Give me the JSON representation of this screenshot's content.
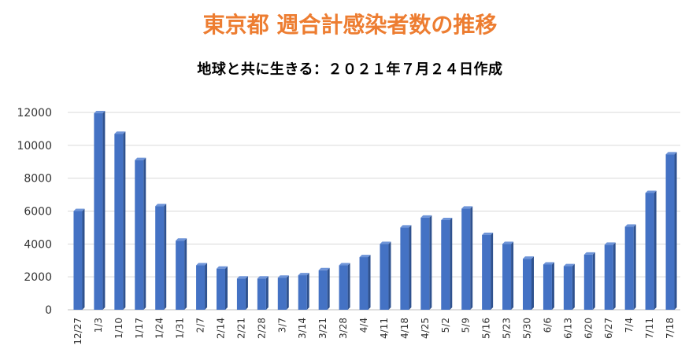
{
  "chart_data": {
    "type": "bar",
    "title": "東京都 週合計感染者数の推移",
    "subtitle": "地球と共に生きる：２０２１年７月２４日作成",
    "xlabel": "",
    "ylabel": "",
    "ylim": [
      0,
      12000
    ],
    "yticks": [
      0,
      2000,
      4000,
      6000,
      8000,
      10000,
      12000
    ],
    "grid": true,
    "bar_color": "#4472C4",
    "title_color": "#ED7D31",
    "categories": [
      "12/27",
      "1/3",
      "1/10",
      "1/17",
      "1/24",
      "1/31",
      "2/7",
      "2/14",
      "2/21",
      "2/28",
      "3/7",
      "3/14",
      "3/21",
      "3/28",
      "4/4",
      "4/11",
      "4/18",
      "4/25",
      "5/2",
      "5/9",
      "5/16",
      "5/23",
      "5/30",
      "6/6",
      "6/13",
      "6/20",
      "6/27",
      "7/4",
      "7/11",
      "7/18"
    ],
    "values": [
      6000,
      11950,
      10700,
      9100,
      6300,
      4200,
      2700,
      2500,
      1900,
      1900,
      1950,
      2100,
      2400,
      2700,
      3200,
      4000,
      5000,
      5600,
      5450,
      6150,
      4550,
      4000,
      3100,
      2750,
      2650,
      3350,
      3950,
      5050,
      7100,
      9450
    ]
  }
}
